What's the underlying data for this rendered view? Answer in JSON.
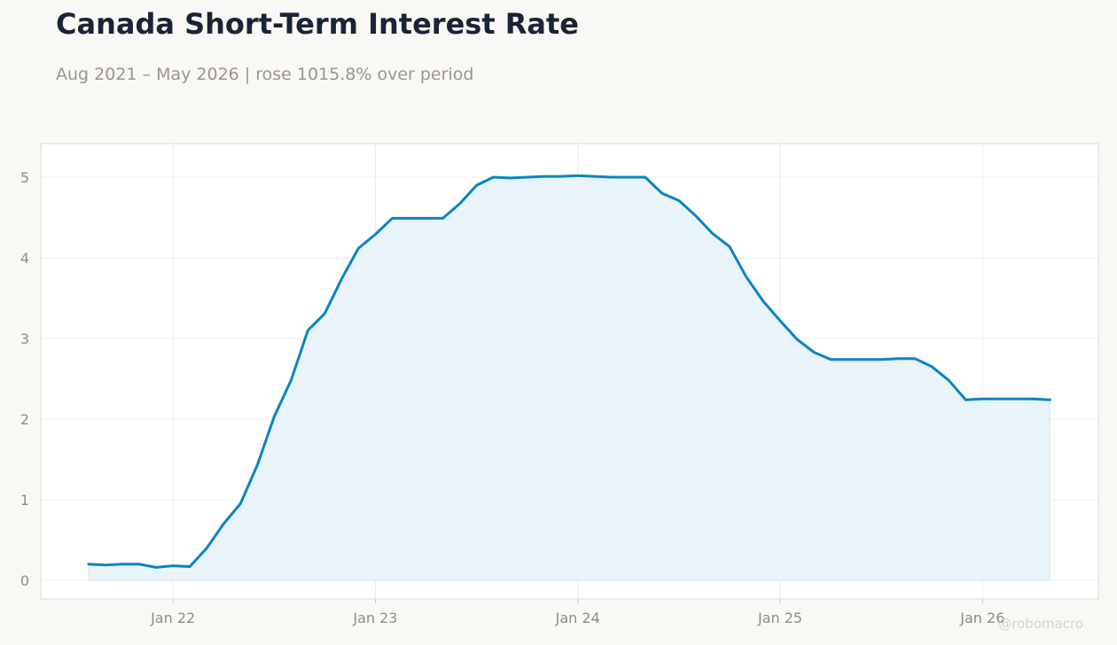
{
  "header": {
    "title": "Canada Short-Term Interest Rate",
    "subtitle": "Aug 2021 – May 2026 | rose 1015.8% over period"
  },
  "watermark": "@robomacro",
  "colors": {
    "line": "#0a84c4",
    "fill": "#e9f3fa",
    "grid": "#ececec",
    "axis_text": "#8f8c88",
    "background": "#f9f8f5",
    "plot_background": "#ffffff"
  },
  "chart_data": {
    "type": "area",
    "title": "Canada Short-Term Interest Rate",
    "subtitle": "Aug 2021 – May 2026 | rose 1015.8% over period",
    "xlabel": "",
    "ylabel": "",
    "ylim": [
      0,
      5
    ],
    "y_ticks": [
      0,
      1,
      2,
      3,
      4,
      5
    ],
    "x_tick_labels": [
      "Jan 22",
      "Jan 23",
      "Jan 24",
      "Jan 25",
      "Jan 26"
    ],
    "x_tick_dates": [
      "2022-01",
      "2023-01",
      "2024-01",
      "2025-01",
      "2026-01"
    ],
    "grid": true,
    "series": [
      {
        "x": [
          "2021-08",
          "2021-09",
          "2021-10",
          "2021-11",
          "2021-12",
          "2022-01",
          "2022-02",
          "2022-03",
          "2022-04",
          "2022-05",
          "2022-06",
          "2022-07",
          "2022-08",
          "2022-09",
          "2022-10",
          "2022-11",
          "2022-12",
          "2023-01",
          "2023-02",
          "2023-03",
          "2023-04",
          "2023-05",
          "2023-06",
          "2023-07",
          "2023-08",
          "2023-09",
          "2023-10",
          "2023-11",
          "2023-12",
          "2024-01",
          "2024-02",
          "2024-03",
          "2024-04",
          "2024-05",
          "2024-06",
          "2024-07",
          "2024-08",
          "2024-09",
          "2024-10",
          "2024-11",
          "2024-12",
          "2025-01",
          "2025-02",
          "2025-03",
          "2025-04",
          "2025-05",
          "2025-06",
          "2025-07",
          "2025-08",
          "2025-09",
          "2025-10",
          "2025-11",
          "2025-12",
          "2026-01",
          "2026-02",
          "2026-03",
          "2026-04",
          "2026-05"
        ],
        "values": [
          0.2,
          0.19,
          0.2,
          0.2,
          0.16,
          0.18,
          0.17,
          0.4,
          0.7,
          0.95,
          1.43,
          2.03,
          2.48,
          3.1,
          3.31,
          3.74,
          4.12,
          4.29,
          4.49,
          4.49,
          4.49,
          4.49,
          4.67,
          4.9,
          5.0,
          4.99,
          5.0,
          5.01,
          5.01,
          5.02,
          5.01,
          5.0,
          5.0,
          5.0,
          4.8,
          4.71,
          4.52,
          4.3,
          4.14,
          3.76,
          3.46,
          3.22,
          2.99,
          2.83,
          2.74,
          2.74,
          2.74,
          2.74,
          2.75,
          2.75,
          2.65,
          2.48,
          2.24,
          2.25,
          2.25,
          2.25,
          2.25,
          2.24
        ]
      }
    ]
  }
}
